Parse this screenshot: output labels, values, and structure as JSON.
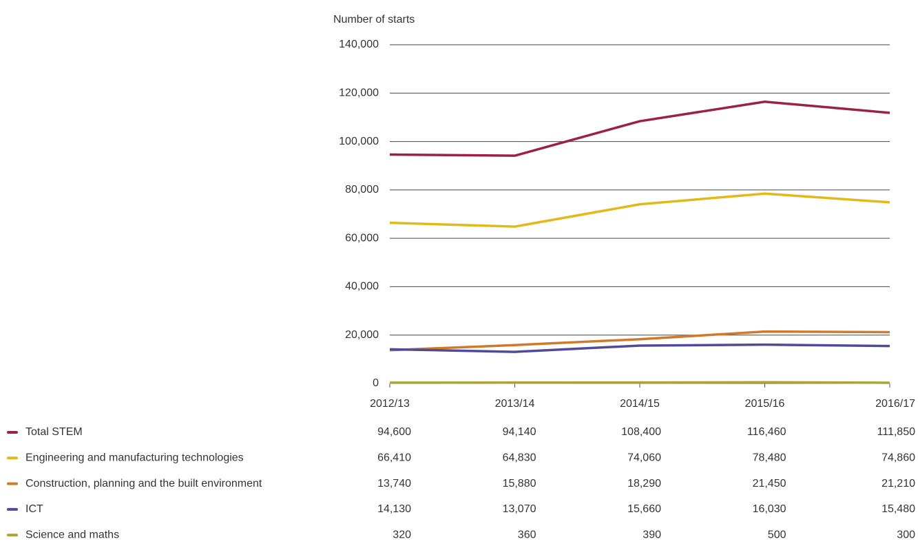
{
  "chart_data": {
    "type": "line",
    "y_label": "Number of starts",
    "categories": [
      "2012/13",
      "2013/14",
      "2014/15",
      "2015/16",
      "2016/17"
    ],
    "ylim": [
      0,
      140000
    ],
    "yticks": [
      0,
      {
        "value": 20000,
        "label": "20,000"
      },
      {
        "value": 40000,
        "label": "40,000"
      },
      {
        "value": 60000,
        "label": "60,000"
      },
      {
        "value": 80000,
        "label": "80,000"
      },
      {
        "value": 100000,
        "label": "100,000"
      },
      {
        "value": 120000,
        "label": "120,000"
      },
      {
        "value": 140000,
        "label": "140,000"
      }
    ],
    "grid": true,
    "series": [
      {
        "name": "Total STEM",
        "color": "#9b2242",
        "values": [
          94600,
          94140,
          108400,
          116460,
          111850
        ],
        "value_labels": [
          "94,600",
          "94,140",
          "108,400",
          "116,460",
          "111,850"
        ]
      },
      {
        "name": "Engineering and manufacturing technologies",
        "color": "#e2b918",
        "values": [
          66410,
          64830,
          74060,
          78480,
          74860
        ],
        "value_labels": [
          "66,410",
          "64,830",
          "74,060",
          "78,480",
          "74,860"
        ]
      },
      {
        "name": "Construction, planning and the built environment",
        "color": "#cf7a2a",
        "values": [
          13740,
          15880,
          18290,
          21450,
          21210
        ],
        "value_labels": [
          "13,740",
          "15,880",
          "18,290",
          "21,450",
          "21,210"
        ]
      },
      {
        "name": "ICT",
        "color": "#4f4b9a",
        "values": [
          14130,
          13070,
          15660,
          16030,
          15480
        ],
        "value_labels": [
          "14,130",
          "13,070",
          "15,660",
          "16,030",
          "15,480"
        ]
      },
      {
        "name": "Science and maths",
        "color": "#a9a33a",
        "values": [
          320,
          360,
          390,
          500,
          300
        ],
        "value_labels": [
          "320",
          "360",
          "390",
          "500",
          "300"
        ]
      }
    ]
  }
}
